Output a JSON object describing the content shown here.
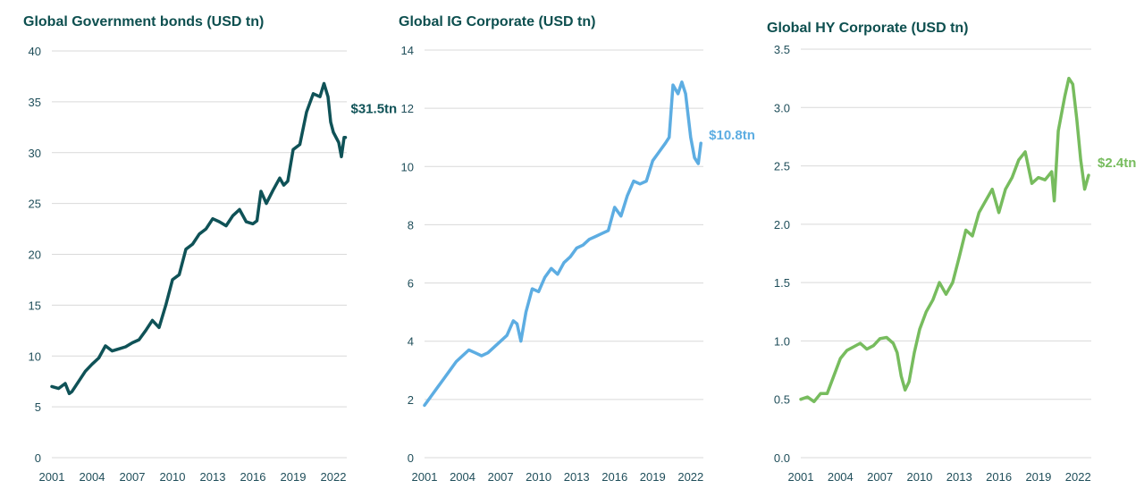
{
  "chart_data": [
    {
      "type": "line",
      "title": "Global Government bonds (USD tn)",
      "color": "#0f5257",
      "end_label": "$31.5tn",
      "ylim": [
        0,
        40
      ],
      "yticks": [
        0,
        5,
        10,
        15,
        20,
        25,
        30,
        35,
        40
      ],
      "ytick_labels": [
        "0",
        "5",
        "10",
        "15",
        "20",
        "25",
        "30",
        "35",
        "40"
      ],
      "xlim": [
        2001,
        2023
      ],
      "xticks": [
        2001,
        2004,
        2007,
        2010,
        2013,
        2016,
        2019,
        2022
      ],
      "xtick_labels": [
        "2001",
        "2004",
        "2007",
        "2010",
        "2013",
        "2016",
        "2019",
        "2022"
      ],
      "grid": true,
      "series": [
        {
          "x": [
            2001.0,
            2001.5,
            2002.0,
            2002.3,
            2002.5,
            2003.0,
            2003.5,
            2004.0,
            2004.5,
            2005.0,
            2005.5,
            2006.0,
            2006.5,
            2007.0,
            2007.5,
            2008.0,
            2008.5,
            2009.0,
            2009.5,
            2010.0,
            2010.5,
            2011.0,
            2011.5,
            2012.0,
            2012.5,
            2013.0,
            2013.5,
            2014.0,
            2014.5,
            2015.0,
            2015.5,
            2016.0,
            2016.3,
            2016.6,
            2017.0,
            2017.5,
            2018.0,
            2018.3,
            2018.6,
            2019.0,
            2019.5,
            2020.0,
            2020.5,
            2021.0,
            2021.3,
            2021.6,
            2021.8,
            2022.0,
            2022.4,
            2022.6,
            2022.8,
            2022.9
          ],
          "y": [
            7.0,
            6.8,
            7.3,
            6.3,
            6.5,
            7.5,
            8.5,
            9.2,
            9.8,
            11.0,
            10.5,
            10.7,
            10.9,
            11.3,
            11.6,
            12.5,
            13.5,
            12.8,
            15.0,
            17.5,
            18.0,
            20.5,
            21.0,
            22.0,
            22.5,
            23.5,
            23.2,
            22.8,
            23.8,
            24.4,
            23.2,
            23.0,
            23.3,
            26.2,
            25.0,
            26.3,
            27.5,
            26.8,
            27.2,
            30.3,
            30.8,
            34.0,
            35.8,
            35.5,
            36.8,
            35.5,
            33.0,
            32.0,
            31.0,
            29.6,
            31.5,
            31.5
          ]
        }
      ]
    },
    {
      "type": "line",
      "title": "Global IG Corporate (USD tn)",
      "color": "#5dade2",
      "end_label": "$10.8tn",
      "ylim": [
        0,
        14
      ],
      "yticks": [
        0,
        2,
        4,
        6,
        8,
        10,
        12,
        14
      ],
      "ytick_labels": [
        "0",
        "2",
        "4",
        "6",
        "8",
        "10",
        "12",
        "14"
      ],
      "xlim": [
        2001,
        2023
      ],
      "xticks": [
        2001,
        2004,
        2007,
        2010,
        2013,
        2016,
        2019,
        2022
      ],
      "xtick_labels": [
        "2001",
        "2004",
        "2007",
        "2010",
        "2013",
        "2016",
        "2019",
        "2022"
      ],
      "grid": true,
      "series": [
        {
          "x": [
            2001.0,
            2001.5,
            2002.0,
            2002.5,
            2003.0,
            2003.5,
            2004.0,
            2004.5,
            2005.0,
            2005.5,
            2006.0,
            2006.5,
            2007.0,
            2007.5,
            2008.0,
            2008.3,
            2008.6,
            2009.0,
            2009.5,
            2010.0,
            2010.5,
            2011.0,
            2011.5,
            2012.0,
            2012.5,
            2013.0,
            2013.5,
            2014.0,
            2014.5,
            2015.0,
            2015.5,
            2016.0,
            2016.5,
            2017.0,
            2017.5,
            2018.0,
            2018.5,
            2019.0,
            2019.5,
            2020.0,
            2020.3,
            2020.6,
            2021.0,
            2021.3,
            2021.6,
            2022.0,
            2022.3,
            2022.6,
            2022.8
          ],
          "y": [
            1.8,
            2.1,
            2.4,
            2.7,
            3.0,
            3.3,
            3.5,
            3.7,
            3.6,
            3.5,
            3.6,
            3.8,
            4.0,
            4.2,
            4.7,
            4.6,
            4.0,
            5.0,
            5.8,
            5.7,
            6.2,
            6.5,
            6.3,
            6.7,
            6.9,
            7.2,
            7.3,
            7.5,
            7.6,
            7.7,
            7.8,
            8.6,
            8.3,
            9.0,
            9.5,
            9.4,
            9.5,
            10.2,
            10.5,
            10.8,
            11.0,
            12.8,
            12.5,
            12.9,
            12.5,
            11.0,
            10.3,
            10.1,
            10.8
          ]
        }
      ]
    },
    {
      "type": "line",
      "title": "Global HY Corporate (USD tn)",
      "color": "#77bc5e",
      "end_label": "$2.4tn",
      "ylim": [
        0,
        3.5
      ],
      "yticks": [
        0,
        0.5,
        1.0,
        1.5,
        2.0,
        2.5,
        3.0,
        3.5
      ],
      "ytick_labels": [
        "0.0",
        "0.5",
        "1.0",
        "1.5",
        "2.0",
        "2.5",
        "3.0",
        "3.5"
      ],
      "xlim": [
        2001,
        2023
      ],
      "xticks": [
        2001,
        2004,
        2007,
        2010,
        2013,
        2016,
        2019,
        2022
      ],
      "xtick_labels": [
        "2001",
        "2004",
        "2007",
        "2010",
        "2013",
        "2016",
        "2019",
        "2022"
      ],
      "grid": true,
      "series": [
        {
          "x": [
            2001.0,
            2001.5,
            2002.0,
            2002.5,
            2003.0,
            2003.5,
            2004.0,
            2004.5,
            2005.0,
            2005.5,
            2006.0,
            2006.5,
            2007.0,
            2007.5,
            2008.0,
            2008.3,
            2008.6,
            2008.9,
            2009.2,
            2009.6,
            2010.0,
            2010.5,
            2011.0,
            2011.5,
            2012.0,
            2012.5,
            2013.0,
            2013.5,
            2014.0,
            2014.5,
            2015.0,
            2015.5,
            2016.0,
            2016.5,
            2017.0,
            2017.5,
            2018.0,
            2018.5,
            2019.0,
            2019.5,
            2020.0,
            2020.2,
            2020.5,
            2021.0,
            2021.3,
            2021.6,
            2021.9,
            2022.2,
            2022.5,
            2022.8
          ],
          "y": [
            0.5,
            0.52,
            0.48,
            0.55,
            0.55,
            0.7,
            0.85,
            0.92,
            0.95,
            0.98,
            0.93,
            0.96,
            1.02,
            1.03,
            0.98,
            0.9,
            0.7,
            0.58,
            0.65,
            0.9,
            1.1,
            1.25,
            1.35,
            1.5,
            1.4,
            1.5,
            1.72,
            1.95,
            1.9,
            2.1,
            2.2,
            2.3,
            2.1,
            2.3,
            2.4,
            2.55,
            2.62,
            2.35,
            2.4,
            2.38,
            2.45,
            2.2,
            2.8,
            3.1,
            3.25,
            3.2,
            2.9,
            2.55,
            2.3,
            2.42
          ]
        }
      ]
    }
  ]
}
